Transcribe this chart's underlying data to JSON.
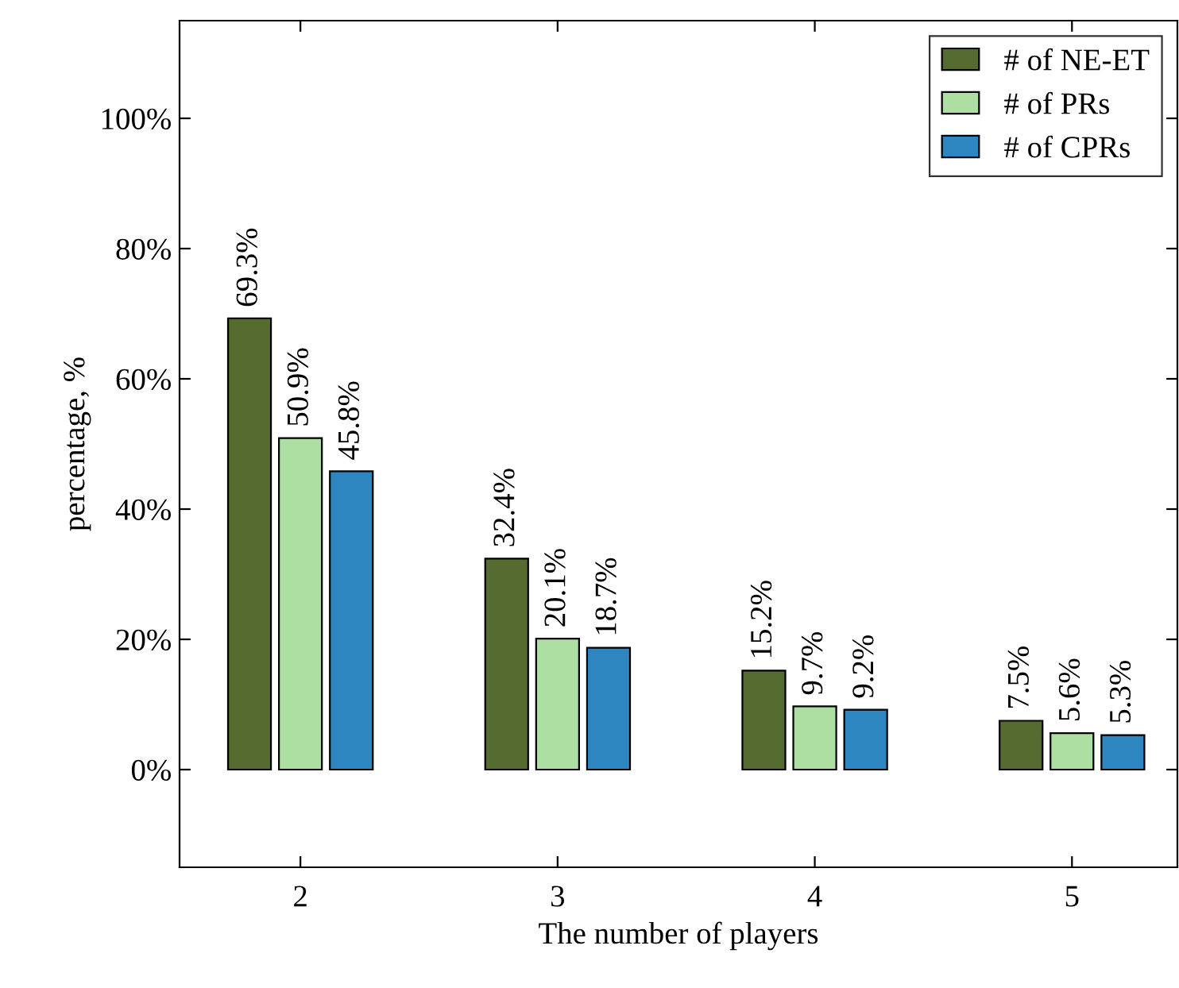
{
  "chart_data": {
    "type": "bar",
    "xlabel": "The number of players",
    "ylabel": "percentage, %",
    "categories": [
      "2",
      "3",
      "4",
      "5"
    ],
    "series": [
      {
        "name": "# of NE-ET",
        "color": "#556b2f",
        "values": [
          69.3,
          32.4,
          15.2,
          7.5
        ],
        "value_labels": [
          "69.3%",
          "32.4%",
          "15.2%",
          "7.5%"
        ]
      },
      {
        "name": "# of PRs",
        "color": "#addfa2",
        "values": [
          50.9,
          20.1,
          9.7,
          5.6
        ],
        "value_labels": [
          "50.9%",
          "20.1%",
          "9.7%",
          "5.6%"
        ]
      },
      {
        "name": "# of CPRs",
        "color": "#2e86c1",
        "values": [
          45.8,
          18.7,
          9.2,
          5.3
        ],
        "value_labels": [
          "45.8%",
          "18.7%",
          "9.2%",
          "5.3%"
        ]
      }
    ],
    "ylim": [
      -15,
      115
    ],
    "yticks": [
      {
        "value": 0,
        "label": "0%"
      },
      {
        "value": 20,
        "label": "20%"
      },
      {
        "value": 40,
        "label": "40%"
      },
      {
        "value": 60,
        "label": "60%"
      },
      {
        "value": 80,
        "label": "80%"
      },
      {
        "value": 100,
        "label": "100%"
      }
    ],
    "grid": false,
    "legend": "top right"
  }
}
